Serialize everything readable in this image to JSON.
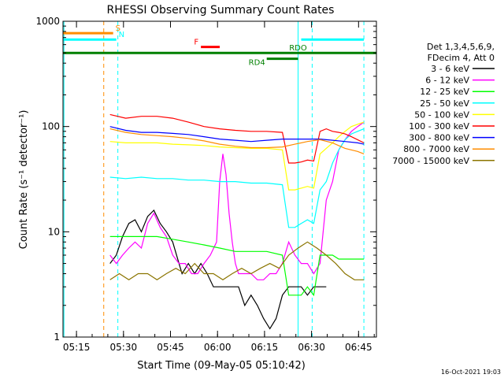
{
  "chart_data": {
    "type": "line",
    "title": "RHESSI Observing Summary Count Rates",
    "xlabel": "Start Time (09-May-05 05:10:42)",
    "ylabel": "Count Rate (s⁻¹ detector⁻¹)",
    "x_unit": "minutes since 05:10:42 UT",
    "xlim": [
      0,
      100
    ],
    "ylim": [
      1,
      1000
    ],
    "yscale": "log",
    "grid": false,
    "legend_position": "right",
    "legend_header": [
      "Det 1,3,4,5,6,9,",
      "FDecim 4, Att 0"
    ],
    "timestamp": "16-Oct-2021 19:03",
    "x_ticks": [
      {
        "x": 4.3,
        "label": "05:15"
      },
      {
        "x": 19.3,
        "label": "05:30"
      },
      {
        "x": 34.3,
        "label": "05:45"
      },
      {
        "x": 49.3,
        "label": "06:00"
      },
      {
        "x": 64.3,
        "label": "06:15"
      },
      {
        "x": 79.3,
        "label": "06:30"
      },
      {
        "x": 94.3,
        "label": "06:45"
      }
    ],
    "y_ticks": [
      {
        "y": 1,
        "label": "1"
      },
      {
        "y": 10,
        "label": "10"
      },
      {
        "y": 100,
        "label": "100"
      },
      {
        "y": 1000,
        "label": "1000"
      }
    ],
    "series": [
      {
        "name": "3 - 6 keV",
        "color": "#000000",
        "x": [
          15,
          17,
          19,
          21,
          23,
          25,
          27,
          29,
          31,
          33,
          35,
          37,
          38,
          40,
          42,
          44,
          46,
          48,
          50,
          52,
          54,
          56,
          58,
          60,
          62,
          64,
          66,
          68,
          70,
          72,
          74,
          76,
          78,
          80,
          82,
          84
        ],
        "y": [
          5,
          6,
          9,
          12,
          13,
          10,
          14,
          16,
          12,
          10,
          8,
          5,
          4,
          5,
          4,
          5,
          4,
          3,
          3,
          3,
          3,
          3,
          2,
          2.5,
          2,
          1.5,
          1.2,
          1.5,
          2.5,
          3,
          3,
          3,
          2.5,
          3,
          3,
          3
        ]
      },
      {
        "name": "6 - 12 keV",
        "color": "#ff00ff",
        "x": [
          15,
          17,
          19,
          21,
          23,
          25,
          27,
          29,
          31,
          33,
          35,
          37,
          39,
          41,
          43,
          45,
          47,
          49,
          50,
          51,
          52,
          53,
          54,
          55,
          56,
          58,
          60,
          62,
          64,
          66,
          68,
          70,
          72,
          74,
          76,
          78,
          80,
          82,
          84,
          86,
          88,
          90,
          92,
          94,
          96
        ],
        "y": [
          6,
          5,
          6,
          7,
          8,
          7,
          12,
          15,
          11,
          9,
          6,
          5,
          5,
          4,
          4,
          5,
          6,
          8,
          30,
          55,
          35,
          15,
          8,
          5,
          4,
          4,
          4,
          3.5,
          3.5,
          4,
          4,
          5,
          8,
          6,
          5,
          5,
          4,
          5,
          20,
          30,
          60,
          75,
          90,
          100,
          110
        ]
      },
      {
        "name": "12 - 25 keV",
        "color": "#00ff00",
        "x": [
          15,
          20,
          25,
          30,
          35,
          40,
          45,
          50,
          55,
          60,
          65,
          70,
          72,
          74,
          76,
          78,
          80,
          82,
          84,
          86,
          88,
          90,
          92,
          94,
          96
        ],
        "y": [
          9,
          9,
          9,
          9,
          8.5,
          8,
          7.5,
          7,
          6.5,
          6.5,
          6.5,
          6,
          2.5,
          2.5,
          2.5,
          3,
          2.5,
          6,
          6,
          6,
          5.5,
          5.5,
          5.5,
          5.5,
          5.5
        ]
      },
      {
        "name": "25 - 50 keV",
        "color": "#00ffff",
        "x": [
          15,
          20,
          25,
          30,
          35,
          40,
          45,
          50,
          55,
          60,
          65,
          70,
          72,
          74,
          76,
          78,
          80,
          82,
          84,
          86,
          88,
          90,
          92,
          94,
          96
        ],
        "y": [
          33,
          32,
          33,
          32,
          32,
          31,
          31,
          30,
          30,
          29,
          29,
          28,
          11,
          11,
          12,
          13,
          12,
          25,
          30,
          45,
          60,
          75,
          85,
          90,
          95
        ]
      },
      {
        "name": "50 - 100 keV",
        "color": "#ffff00",
        "x": [
          15,
          20,
          25,
          30,
          35,
          40,
          45,
          50,
          55,
          60,
          65,
          70,
          72,
          74,
          76,
          78,
          80,
          82,
          84,
          86,
          88,
          90,
          92,
          94,
          96
        ],
        "y": [
          72,
          70,
          70,
          70,
          68,
          67,
          66,
          64,
          63,
          62,
          62,
          60,
          25,
          25,
          26,
          27,
          26,
          55,
          62,
          70,
          80,
          90,
          100,
          105,
          110
        ]
      },
      {
        "name": "100 - 300 keV",
        "color": "#ff0000",
        "x": [
          15,
          20,
          25,
          30,
          35,
          40,
          45,
          50,
          55,
          60,
          65,
          70,
          72,
          74,
          76,
          78,
          80,
          82,
          84,
          86,
          88,
          90,
          92,
          94,
          96
        ],
        "y": [
          130,
          120,
          125,
          125,
          120,
          110,
          100,
          95,
          92,
          90,
          90,
          88,
          45,
          45,
          46,
          48,
          47,
          90,
          95,
          90,
          88,
          85,
          80,
          75,
          70
        ]
      },
      {
        "name": "300 - 800 keV",
        "color": "#0000ff",
        "x": [
          15,
          20,
          25,
          30,
          35,
          40,
          45,
          50,
          55,
          60,
          65,
          70,
          74,
          78,
          82,
          86,
          90,
          94,
          96
        ],
        "y": [
          100,
          92,
          88,
          88,
          86,
          84,
          80,
          76,
          74,
          72,
          74,
          76,
          76,
          76,
          76,
          74,
          72,
          70,
          68
        ]
      },
      {
        "name": "800 - 7000 keV",
        "color": "#ff8c00",
        "x": [
          15,
          20,
          25,
          30,
          35,
          40,
          45,
          50,
          55,
          60,
          65,
          70,
          74,
          78,
          82,
          86,
          90,
          94,
          96
        ],
        "y": [
          95,
          88,
          84,
          82,
          80,
          77,
          73,
          68,
          65,
          63,
          63,
          64,
          68,
          72,
          75,
          70,
          62,
          58,
          55
        ]
      },
      {
        "name": "7000 - 15000 keV",
        "color": "#8b7500",
        "x": [
          15,
          18,
          21,
          24,
          27,
          30,
          33,
          36,
          39,
          42,
          45,
          48,
          51,
          54,
          57,
          60,
          63,
          66,
          69,
          72,
          75,
          78,
          81,
          84,
          87,
          90,
          93,
          96
        ],
        "y": [
          3.5,
          4,
          3.5,
          4,
          4,
          3.5,
          4,
          4.5,
          4,
          5,
          4,
          4,
          3.5,
          4,
          4.5,
          4,
          4.5,
          5,
          4.5,
          6,
          7,
          8,
          7,
          6,
          5,
          4,
          3.5,
          3.5
        ]
      }
    ],
    "hlines": [
      {
        "name": "S",
        "label": "S",
        "color": "#ff8c00",
        "x": [
          0,
          16
        ],
        "y": 770
      },
      {
        "name": "N",
        "label": "N",
        "color": "#00ffff",
        "x": [
          0,
          17
        ],
        "y": 670
      },
      {
        "name": "F",
        "label": "F",
        "color": "#ff0000",
        "x": [
          44,
          50
        ],
        "y": 570
      },
      {
        "name": "RDO",
        "label": "RDO",
        "color": "#008000",
        "x": [
          0,
          100
        ],
        "y": 500
      },
      {
        "name": "RD4",
        "label": "RD4",
        "color": "#008000",
        "x": [
          65,
          75
        ],
        "y": 440
      },
      {
        "name": "N2",
        "label": "",
        "color": "#00ffff",
        "x": [
          76,
          96
        ],
        "y": 670
      }
    ],
    "vlines": [
      {
        "x": 0.3,
        "color": "#00ffff",
        "dashed": false
      },
      {
        "x": 13,
        "color": "#ff8c00",
        "dashed": true
      },
      {
        "x": 17.5,
        "color": "#00ffff",
        "dashed": true
      },
      {
        "x": 75,
        "color": "#00ffff",
        "dashed": false
      },
      {
        "x": 79.5,
        "color": "#00ffff",
        "dashed": true
      },
      {
        "x": 96,
        "color": "#00ffff",
        "dashed": true
      }
    ]
  }
}
